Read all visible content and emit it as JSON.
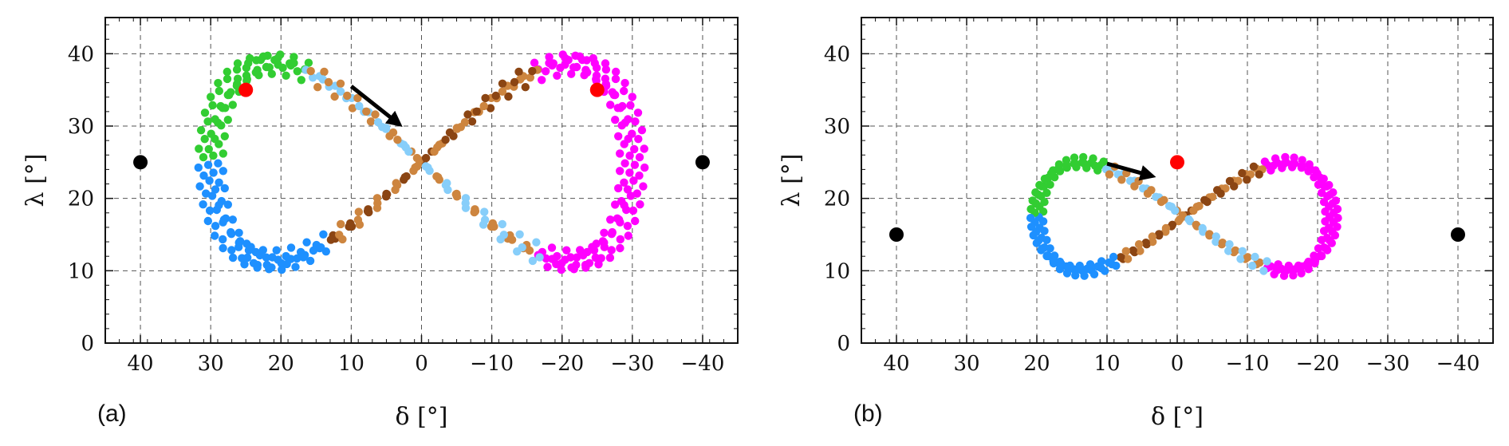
{
  "chart_data": [
    {
      "type": "scatter",
      "panel_label": "(a)",
      "xlabel": "δ [°]",
      "ylabel": "λ [°]",
      "xlim": [
        45,
        -45
      ],
      "ylim": [
        0,
        45
      ],
      "xticks": [
        40,
        30,
        20,
        10,
        0,
        -10,
        -20,
        -30,
        -40
      ],
      "xticklabels": [
        "40",
        "30",
        "20",
        "10",
        "0",
        "−10",
        "−20",
        "−30",
        "−40"
      ],
      "yticks": [
        0,
        10,
        20,
        30,
        40
      ],
      "yticklabels": [
        "0",
        "10",
        "20",
        "30",
        "40"
      ],
      "grid": true,
      "colors": {
        "green": "#32cd32",
        "sienna": "#cd853f",
        "brown": "#8b4513",
        "magenta": "#ff00ff",
        "dodgerblue": "#1e90ff",
        "lightskyblue": "#87cefa",
        "marker_red": "#ff0000",
        "marker_black": "#000000"
      },
      "orbit": {
        "cx": 0,
        "cy": 25,
        "ax": 30,
        "ay": 13.5,
        "width": 3.5,
        "loops": 6
      },
      "points": [
        {
          "name": "red-marker-left",
          "x": 25,
          "y": 35,
          "color": "#ff0000"
        },
        {
          "name": "red-marker-right",
          "x": -25,
          "y": 35,
          "color": "#ff0000"
        },
        {
          "name": "black-marker-left",
          "x": 40,
          "y": 25,
          "color": "#000000"
        },
        {
          "name": "black-marker-right",
          "x": -40,
          "y": 25,
          "color": "#000000"
        }
      ],
      "arrow": {
        "from": [
          10,
          35.5
        ],
        "to": [
          3.5,
          30.5
        ]
      }
    },
    {
      "type": "scatter",
      "panel_label": "(b)",
      "xlabel": "δ [°]",
      "ylabel": "λ [°]",
      "xlim": [
        45,
        -45
      ],
      "ylim": [
        0,
        45
      ],
      "xticks": [
        40,
        30,
        20,
        10,
        0,
        -10,
        -20,
        -30,
        -40
      ],
      "xticklabels": [
        "40",
        "30",
        "20",
        "10",
        "0",
        "−10",
        "−20",
        "−30",
        "−40"
      ],
      "yticks": [
        0,
        10,
        20,
        30,
        40
      ],
      "yticklabels": [
        "0",
        "10",
        "20",
        "30",
        "40"
      ],
      "grid": true,
      "colors": {
        "green": "#32cd32",
        "sienna": "#cd853f",
        "brown": "#8b4513",
        "magenta": "#ff00ff",
        "dodgerblue": "#1e90ff",
        "lightskyblue": "#87cefa",
        "marker_red": "#ff0000",
        "marker_black": "#000000"
      },
      "orbit": {
        "cx": -1,
        "cy": 17.5,
        "ax": 21,
        "ay": 7.5,
        "width": 1.8,
        "loops": 4
      },
      "points": [
        {
          "name": "red-marker-center",
          "x": 0,
          "y": 25,
          "color": "#ff0000"
        },
        {
          "name": "black-marker-left",
          "x": 40,
          "y": 15,
          "color": "#000000"
        },
        {
          "name": "black-marker-right",
          "x": -40,
          "y": 15,
          "color": "#000000"
        }
      ],
      "arrow": {
        "from": [
          10,
          24.8
        ],
        "to": [
          4,
          23.2
        ]
      }
    }
  ]
}
